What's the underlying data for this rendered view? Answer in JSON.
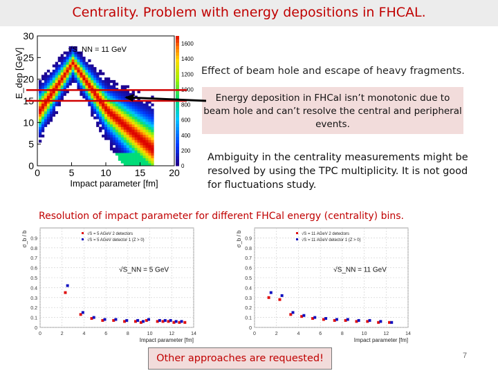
{
  "title": "Centrality. Problem with  energy depositions in FHCAL.",
  "note_beam_hole": "Effect of beam hole and escape of heavy fragments.",
  "note_nonmonotonic": "Energy deposition in FHCal  isn’t monotonic due to beam hole and can’t resolve the central and peripheral events.",
  "note_ambiguity": "Ambiguity in the centrality measurements might be resolved by using the TPC multiplicity. It is not good for fluctuations study.",
  "resolution_title": "Resolution of impact parameter for different FHCal energy (centrality) bins.",
  "other_approaches": "Other approaches are requested!",
  "page_number": "7",
  "colors": {
    "title_red": "#c00000",
    "pink_box": "#f2dcdb",
    "series_red": "#e01010",
    "series_blue": "#1010c0",
    "arrow": "#000000",
    "band_lines": "#d00000"
  },
  "chart_data": [
    {
      "type": "heatmap",
      "title": "",
      "annotation": "√S_NN = 11 GeV",
      "xlabel": "Impact parameter [fm]",
      "ylabel": "E_dep [GeV]",
      "xlim": [
        0,
        20
      ],
      "ylim": [
        0,
        30
      ],
      "xticks": [
        0,
        5,
        10,
        15,
        20
      ],
      "yticks": [
        0,
        5,
        10,
        15,
        20,
        25,
        30
      ],
      "colorbar_ticks": [
        0,
        200,
        400,
        600,
        800,
        1000,
        1200,
        1400,
        1600
      ],
      "horizontal_lines_y": [
        17.5,
        15.0
      ]
    },
    {
      "type": "scatter",
      "annotation": "√S_NN = 5 GeV",
      "xlabel": "Impact parameter [fm]",
      "ylabel": "σ_b / b",
      "xlim": [
        0,
        14
      ],
      "ylim": [
        0,
        1
      ],
      "xticks": [
        0,
        2,
        4,
        6,
        8,
        10,
        12,
        14
      ],
      "yticks": [
        0,
        0.1,
        0.2,
        0.3,
        0.4,
        0.5,
        0.6,
        0.7,
        0.8,
        0.9
      ],
      "legend": "top-left",
      "series": [
        {
          "name": "√S = 5 AGeV 2 detectors",
          "x": [
            2.3,
            3.7,
            4.7,
            5.7,
            6.7,
            7.7,
            8.7,
            9.2,
            9.7,
            10.7,
            11.2,
            11.7,
            12.2,
            12.7,
            13.2
          ],
          "y": [
            0.35,
            0.13,
            0.09,
            0.07,
            0.07,
            0.06,
            0.06,
            0.05,
            0.07,
            0.06,
            0.06,
            0.06,
            0.05,
            0.05,
            0.05
          ]
        },
        {
          "name": "√S = 5 AGeV detector 1 (Z > 0)",
          "x": [
            2.5,
            3.9,
            4.9,
            5.9,
            6.9,
            7.9,
            8.9,
            9.4,
            9.9,
            10.9,
            11.4,
            11.9,
            12.4,
            12.9
          ],
          "y": [
            0.42,
            0.15,
            0.1,
            0.08,
            0.08,
            0.07,
            0.07,
            0.06,
            0.08,
            0.07,
            0.07,
            0.07,
            0.06,
            0.06
          ]
        }
      ]
    },
    {
      "type": "scatter",
      "annotation": "√S_NN = 11 GeV",
      "xlabel": "Impact parameter [fm]",
      "ylabel": "σ_b / b",
      "xlim": [
        0,
        14
      ],
      "ylim": [
        0,
        1
      ],
      "xticks": [
        0,
        2,
        4,
        6,
        8,
        10,
        12,
        14
      ],
      "yticks": [
        0,
        0.1,
        0.2,
        0.3,
        0.4,
        0.5,
        0.6,
        0.7,
        0.8,
        0.9
      ],
      "legend": "top-left",
      "series": [
        {
          "name": "√S = 11 AGeV 2 detectors",
          "x": [
            1.3,
            2.3,
            3.3,
            4.3,
            5.3,
            6.3,
            7.3,
            8.3,
            9.3,
            10.3,
            11.3,
            12.3
          ],
          "y": [
            0.3,
            0.28,
            0.13,
            0.11,
            0.09,
            0.08,
            0.07,
            0.07,
            0.06,
            0.06,
            0.05,
            0.05
          ]
        },
        {
          "name": "√S = 11 AGeV detector 1 (Z > 0)",
          "x": [
            1.5,
            2.5,
            3.5,
            4.5,
            5.5,
            6.5,
            7.5,
            8.5,
            9.5,
            10.5,
            11.5,
            12.5
          ],
          "y": [
            0.35,
            0.32,
            0.15,
            0.12,
            0.1,
            0.09,
            0.08,
            0.08,
            0.07,
            0.07,
            0.06,
            0.05
          ]
        }
      ]
    }
  ]
}
